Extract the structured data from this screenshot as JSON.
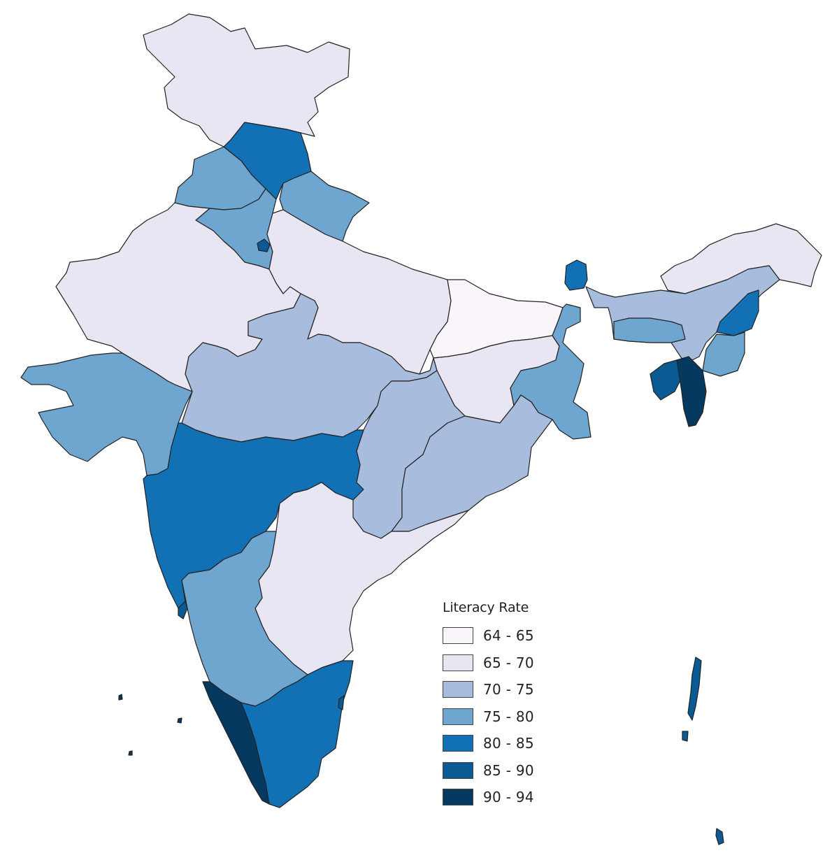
{
  "legend": {
    "title": "Literacy Rate",
    "items": [
      {
        "label": "64 - 65",
        "color": "#faf5fb"
      },
      {
        "label": "65 - 70",
        "color": "#e9e6f3"
      },
      {
        "label": "70 - 75",
        "color": "#a8bddd"
      },
      {
        "label": "75 - 80",
        "color": "#6fa6d0"
      },
      {
        "label": "80 - 85",
        "color": "#1270b4"
      },
      {
        "label": "85 - 90",
        "color": "#0a5a94"
      },
      {
        "label": "90 - 94",
        "color": "#06395f"
      }
    ]
  },
  "regions": [
    {
      "name": "jammu-kashmir-ladakh",
      "literacy_class": "65 - 70"
    },
    {
      "name": "himachal-pradesh",
      "literacy_class": "80 - 85"
    },
    {
      "name": "punjab",
      "literacy_class": "75 - 80"
    },
    {
      "name": "uttarakhand",
      "literacy_class": "75 - 80"
    },
    {
      "name": "haryana",
      "literacy_class": "75 - 80"
    },
    {
      "name": "delhi",
      "literacy_class": "85 - 90"
    },
    {
      "name": "rajasthan",
      "literacy_class": "65 - 70"
    },
    {
      "name": "uttar-pradesh",
      "literacy_class": "65 - 70"
    },
    {
      "name": "bihar",
      "literacy_class": "64 - 65"
    },
    {
      "name": "gujarat",
      "literacy_class": "75 - 80"
    },
    {
      "name": "madhya-pradesh",
      "literacy_class": "70 - 75"
    },
    {
      "name": "jharkhand",
      "literacy_class": "65 - 70"
    },
    {
      "name": "west-bengal",
      "literacy_class": "75 - 80"
    },
    {
      "name": "chhattisgarh",
      "literacy_class": "70 - 75"
    },
    {
      "name": "odisha",
      "literacy_class": "70 - 75"
    },
    {
      "name": "maharashtra",
      "literacy_class": "80 - 85"
    },
    {
      "name": "telangana-andhra",
      "literacy_class": "65 - 70"
    },
    {
      "name": "karnataka",
      "literacy_class": "75 - 80"
    },
    {
      "name": "goa",
      "literacy_class": "85 - 90"
    },
    {
      "name": "kerala",
      "literacy_class": "90 - 94"
    },
    {
      "name": "tamil-nadu",
      "literacy_class": "80 - 85"
    },
    {
      "name": "puducherry",
      "literacy_class": "85 - 90"
    },
    {
      "name": "sikkim",
      "literacy_class": "80 - 85"
    },
    {
      "name": "arunachal-pradesh",
      "literacy_class": "65 - 70"
    },
    {
      "name": "assam",
      "literacy_class": "70 - 75"
    },
    {
      "name": "meghalaya",
      "literacy_class": "75 - 80"
    },
    {
      "name": "nagaland",
      "literacy_class": "80 - 85"
    },
    {
      "name": "manipur",
      "literacy_class": "75 - 80"
    },
    {
      "name": "tripura",
      "literacy_class": "85 - 90"
    },
    {
      "name": "mizoram",
      "literacy_class": "90 - 94"
    },
    {
      "name": "andaman-nicobar",
      "literacy_class": "85 - 90"
    },
    {
      "name": "lakshadweep",
      "literacy_class": "90 - 94"
    }
  ]
}
